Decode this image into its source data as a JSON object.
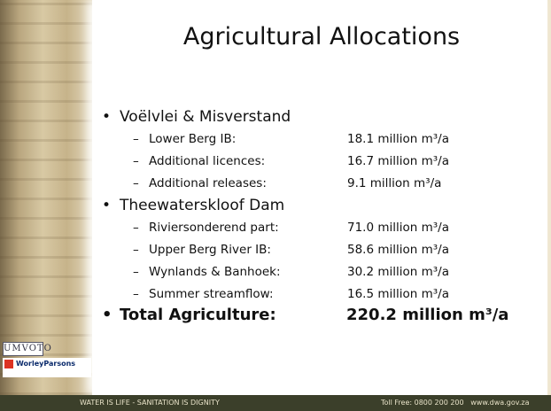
{
  "title": "Agricultural Allocations",
  "sections": [
    {
      "heading": "Voëlvlei & Misverstand",
      "items": [
        {
          "label": "Lower Berg IB:",
          "value": "18.1 million m³/a"
        },
        {
          "label": "Additional licences:",
          "value": "16.7 million m³/a"
        },
        {
          "label": "Additional releases:",
          "value": "9.1 million m³/a"
        }
      ]
    },
    {
      "heading": "Theewaterskloof Dam",
      "items": [
        {
          "label": "Riviersonderend part:",
          "value": "71.0 million m³/a"
        },
        {
          "label": "Upper Berg River IB:",
          "value": "58.6 million m³/a"
        },
        {
          "label": "Wynlands & Banhoek:",
          "value": "30.2 million m³/a"
        },
        {
          "label": "Summer streamflow:",
          "value": "16.5 million m³/a"
        }
      ]
    }
  ],
  "total": {
    "label": "Total Agriculture:",
    "value": "220.2 million m³/a"
  },
  "logos": {
    "umvoto": "UMVOTO",
    "worley": "WorleyParsons"
  },
  "footer": {
    "motto": "WATER IS LIFE - SANITATION IS DIGNITY",
    "contact": "Toll Free: 0800 200 200   www.dwa.gov.za"
  }
}
